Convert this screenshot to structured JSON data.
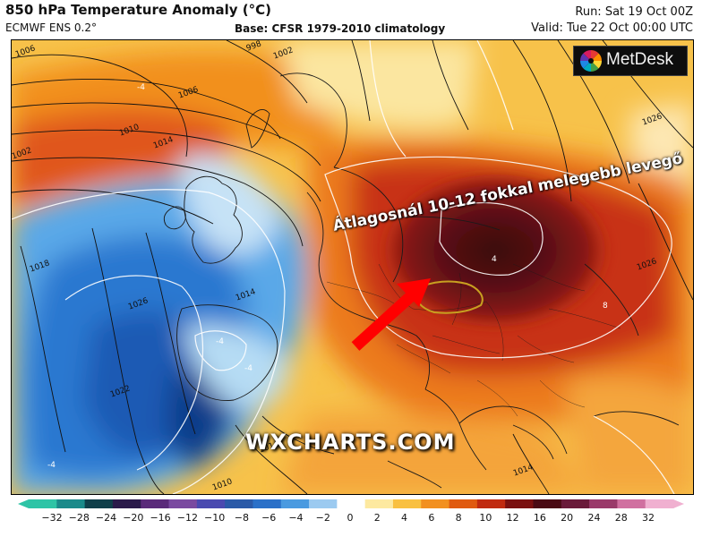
{
  "header": {
    "title": "850 hPa Temperature Anomaly (°C)",
    "model": "ECMWF ENS 0.2°",
    "base": "Base: CFSR 1979-2010 climatology",
    "run": "Run: Sat 19 Oct 00Z",
    "valid": "Valid: Tue 22 Oct 00:00 UTC"
  },
  "logo": {
    "text": "MetDesk",
    "icon": "metdesk-logo-icon"
  },
  "annotation": {
    "text": "Átlagosnál 10-12 fokkal melegebb levegő",
    "arrow_color": "#ff0000"
  },
  "watermark": "WXCHARTS.COM",
  "isobars": {
    "labels": [
      "1006",
      "998",
      "1002",
      "1006",
      "1010",
      "1014",
      "1014",
      "1018",
      "1022",
      "1026",
      "1026",
      "1010",
      "1014",
      "1014",
      "1026",
      "1002"
    ]
  },
  "anomaly_labels": [
    "-4",
    "-4",
    "-4",
    "-4",
    "8",
    "4"
  ],
  "colorbar": {
    "ticks": [
      "−32",
      "−28",
      "−24",
      "−20",
      "−16",
      "−12",
      "−10",
      "−8",
      "−6",
      "−4",
      "−2",
      "0",
      "2",
      "4",
      "6",
      "8",
      "10",
      "12",
      "16",
      "20",
      "24",
      "28",
      "32"
    ],
    "colors": [
      "#2ec4a6",
      "#1a8a8a",
      "#0f3f4a",
      "#2a1a4a",
      "#5a2a7a",
      "#7a4aa0",
      "#4a4ab0",
      "#2a5aa8",
      "#2a70c8",
      "#4a9ae0",
      "#9ccaf0",
      "#ffffff",
      "#fde9a0",
      "#f9c040",
      "#f29020",
      "#e05a10",
      "#c02a10",
      "#7a1010",
      "#4a0a14",
      "#6a1a3a",
      "#9a3a6a",
      "#d070a0",
      "#f0b0d0"
    ]
  }
}
